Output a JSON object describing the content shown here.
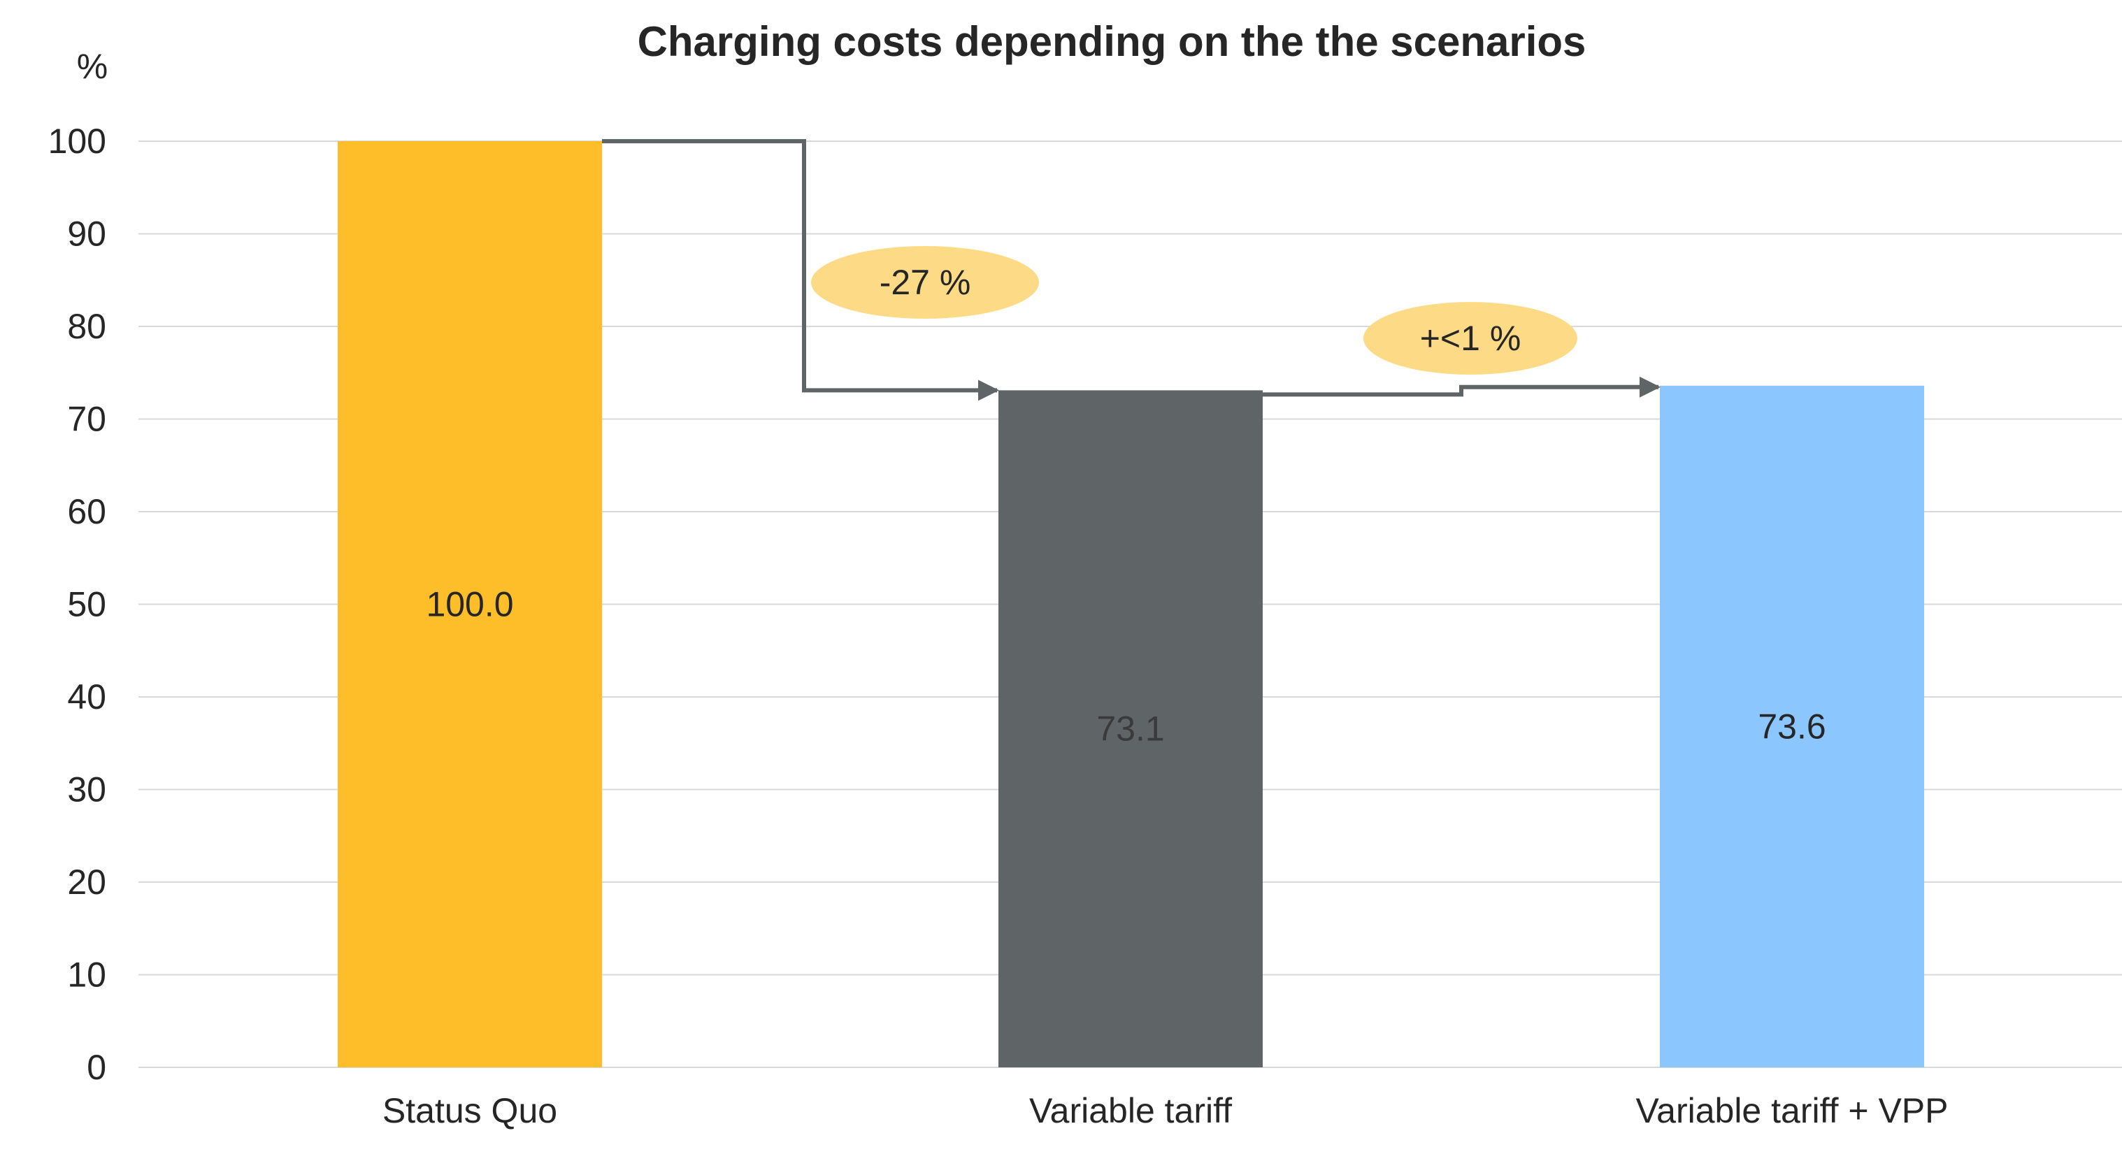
{
  "chart_data": {
    "type": "bar",
    "title": "Charging costs depending on the the scenarios",
    "ylabel": "%",
    "xlabel": "",
    "ylim": [
      0,
      100
    ],
    "yticks": [
      0,
      10,
      20,
      30,
      40,
      50,
      60,
      70,
      80,
      90,
      100
    ],
    "grid": true,
    "legend": "none",
    "categories": [
      "Status Quo",
      "Variable tariff",
      "Variable tariff + VPP"
    ],
    "values": [
      100.0,
      73.1,
      73.6
    ],
    "data_labels": [
      "100.0",
      "73.1",
      "73.6"
    ],
    "colors": [
      "#FDBE2A",
      "#5F6566",
      "#8CC6FF"
    ],
    "label_colors": [
      "#262626",
      "#3a3a3a",
      "#262626"
    ],
    "connector_color": "#5F6566",
    "annotations": [
      {
        "text": "-27 %",
        "from": 0,
        "to": 1,
        "color": "#FDDB86"
      },
      {
        "text": "+<1 %",
        "from": 1,
        "to": 2,
        "color": "#FDDB86"
      }
    ]
  }
}
